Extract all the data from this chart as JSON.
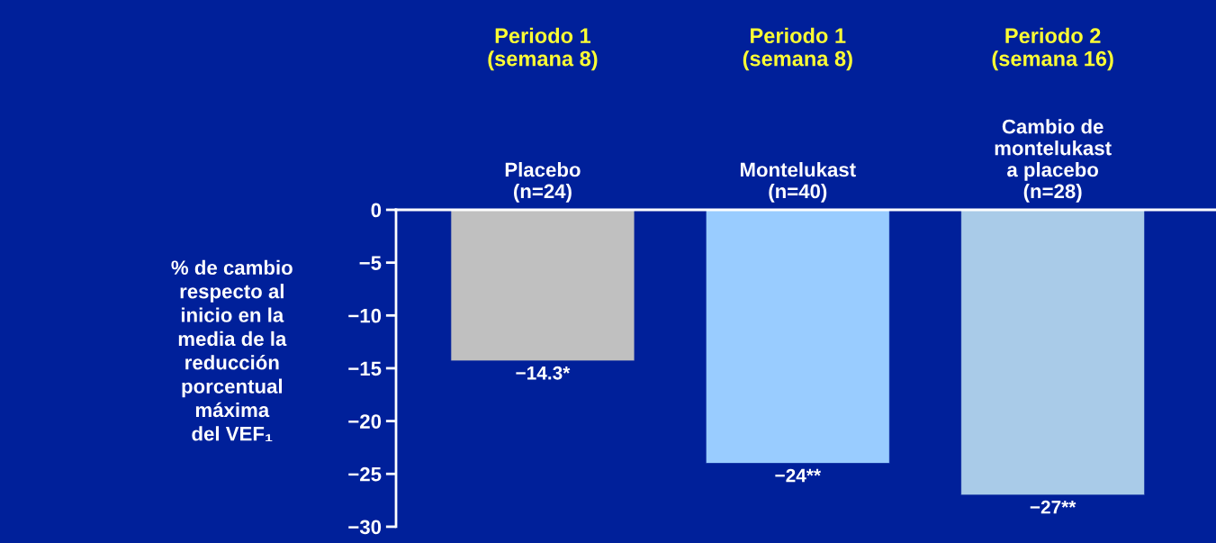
{
  "chart_data": {
    "type": "bar",
    "categories": [
      "Placebo\n(n=24)",
      "Montelukast\n(n=40)",
      "Cambio de\nmontelukast\na placebo\n(n=28)"
    ],
    "values": [
      -14.3,
      -24,
      -27
    ],
    "value_labels": [
      "−14.3*",
      "−24**",
      "−27**"
    ],
    "colors": [
      "#c0c0c0",
      "#99ccff",
      "#a9cbe8"
    ],
    "ylabel": "% de cambio\nrespecto al\ninicio en la\nmedia de la\nreducción\nporcentual\nmáxima\ndel VEF₁",
    "annotations": [
      "Periodo 1\n(semana 8)",
      "Periodo 1\n(semana 8)",
      "Periodo 2\n(semana 16)"
    ],
    "ylim": [
      -30,
      0
    ],
    "yticks": [
      {
        "value": 0,
        "label": "0"
      },
      {
        "value": -5,
        "label": "−5"
      },
      {
        "value": -10,
        "label": "−10"
      },
      {
        "value": -15,
        "label": "−15"
      },
      {
        "value": -20,
        "label": "−20"
      },
      {
        "value": -25,
        "label": "−25"
      },
      {
        "value": -30,
        "label": "−30"
      }
    ],
    "grid": false,
    "legend": false
  }
}
